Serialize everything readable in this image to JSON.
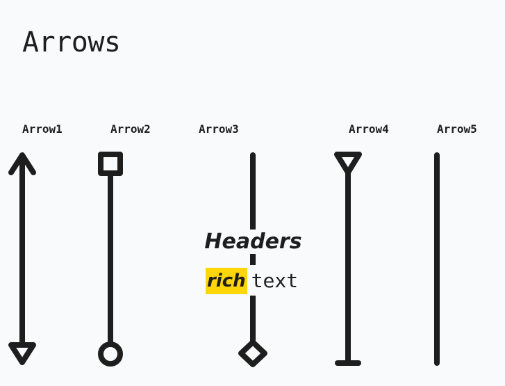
{
  "page": {
    "title": "Arrows"
  },
  "arrows": [
    {
      "label": "Arrow1",
      "start_head": "arrow",
      "end_head": "triangle-outline"
    },
    {
      "label": "Arrow2",
      "start_head": "square-outline",
      "end_head": "circle-outline"
    },
    {
      "label": "Arrow3",
      "start_head": "none",
      "end_head": "diamond-outline"
    },
    {
      "label": "Arrow4",
      "start_head": "triangle-outline",
      "end_head": "bar"
    },
    {
      "label": "Arrow5",
      "start_head": "none",
      "end_head": "none"
    }
  ],
  "center_text": {
    "header": "Headers",
    "highlight": "rich",
    "plain": "text"
  },
  "colors": {
    "stroke": "#1e1e1e",
    "background": "#f9fafb",
    "highlight": "#ffd60a"
  }
}
